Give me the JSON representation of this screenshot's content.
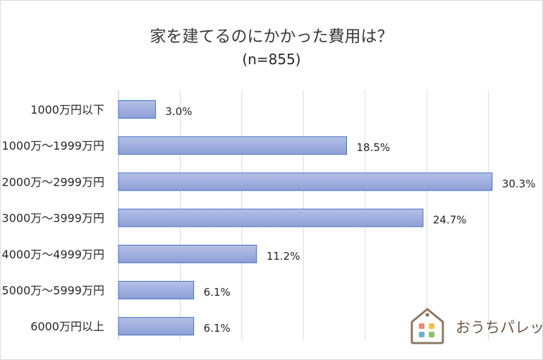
{
  "chart_data": {
    "type": "bar",
    "orientation": "horizontal",
    "title": "家を建てるのにかかった費用は？",
    "subtitle": "(n=855)",
    "categories": [
      "1000万円以下",
      "1000万～1999万円",
      "2000万～2999万円",
      "3000万～3999万円",
      "4000万～4999万円",
      "5000万～5999万円",
      "6000万円以上"
    ],
    "values": [
      3.0,
      18.5,
      30.3,
      24.7,
      11.2,
      6.1,
      6.1
    ],
    "data_labels": [
      "3.0%",
      "18.5%",
      "30.3%",
      "24.7%",
      "11.2%",
      "6.1%",
      "6.1%"
    ],
    "xlim": [
      0,
      35
    ],
    "grid": true,
    "colors": {
      "bar_top": "#b4c0e6",
      "bar_bottom": "#8e9fd6",
      "bar_border": "#4472c4"
    }
  },
  "logo": {
    "text": "おうちパレット"
  }
}
